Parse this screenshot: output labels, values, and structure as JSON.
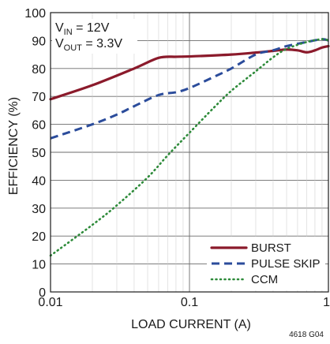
{
  "chart_data": {
    "type": "line",
    "xlabel": "LOAD CURRENT (A)",
    "ylabel": "EFFICIENCY (%)",
    "x_scale": "log",
    "xlim": [
      0.01,
      1
    ],
    "ylim": [
      0,
      100
    ],
    "x_ticks": [
      {
        "value": 0.01,
        "label": "0.01"
      },
      {
        "value": 0.1,
        "label": "0.1"
      },
      {
        "value": 1,
        "label": "1"
      }
    ],
    "y_ticks": [
      0,
      10,
      20,
      30,
      40,
      50,
      60,
      70,
      80,
      90,
      100
    ],
    "grid": "decade lines on x, lines every 10% on y",
    "annotations": [
      {
        "main": "V",
        "sub": "IN",
        "rest": " = 12V"
      },
      {
        "main": "V",
        "sub": "OUT",
        "rest": " = 3.3V"
      }
    ],
    "legend_position": "bottom-right",
    "series": [
      {
        "name": "BURST",
        "color": "#8b1a2b",
        "style": "solid",
        "x": [
          0.01,
          0.02,
          0.04,
          0.06,
          0.08,
          0.1,
          0.2,
          0.3,
          0.4,
          0.5,
          0.6,
          0.7,
          0.8,
          0.9,
          1.0
        ],
        "y": [
          69,
          74,
          80,
          83.8,
          84.2,
          84.3,
          85.0,
          85.7,
          86.3,
          86.8,
          86.5,
          85.8,
          86.5,
          87.5,
          88
        ]
      },
      {
        "name": "PULSE SKIP",
        "color": "#2b4c9b",
        "style": "dashed",
        "x": [
          0.01,
          0.02,
          0.03,
          0.04,
          0.06,
          0.08,
          0.1,
          0.15,
          0.2,
          0.3,
          0.4,
          0.5,
          0.7,
          0.9,
          1.0
        ],
        "y": [
          55,
          60,
          63.5,
          66.5,
          70.5,
          71.5,
          73,
          77,
          80,
          85,
          86.5,
          88,
          89.5,
          90.5,
          90
        ]
      },
      {
        "name": "CCM",
        "color": "#2e8b3a",
        "style": "dotted",
        "x": [
          0.01,
          0.02,
          0.03,
          0.05,
          0.07,
          0.1,
          0.15,
          0.2,
          0.3,
          0.4,
          0.5,
          0.7,
          0.9,
          1.0
        ],
        "y": [
          13,
          24,
          31,
          41,
          49,
          57,
          66,
          72,
          79,
          84,
          87,
          89.5,
          90.5,
          90
        ]
      }
    ],
    "figure_id": "4618 G04"
  }
}
